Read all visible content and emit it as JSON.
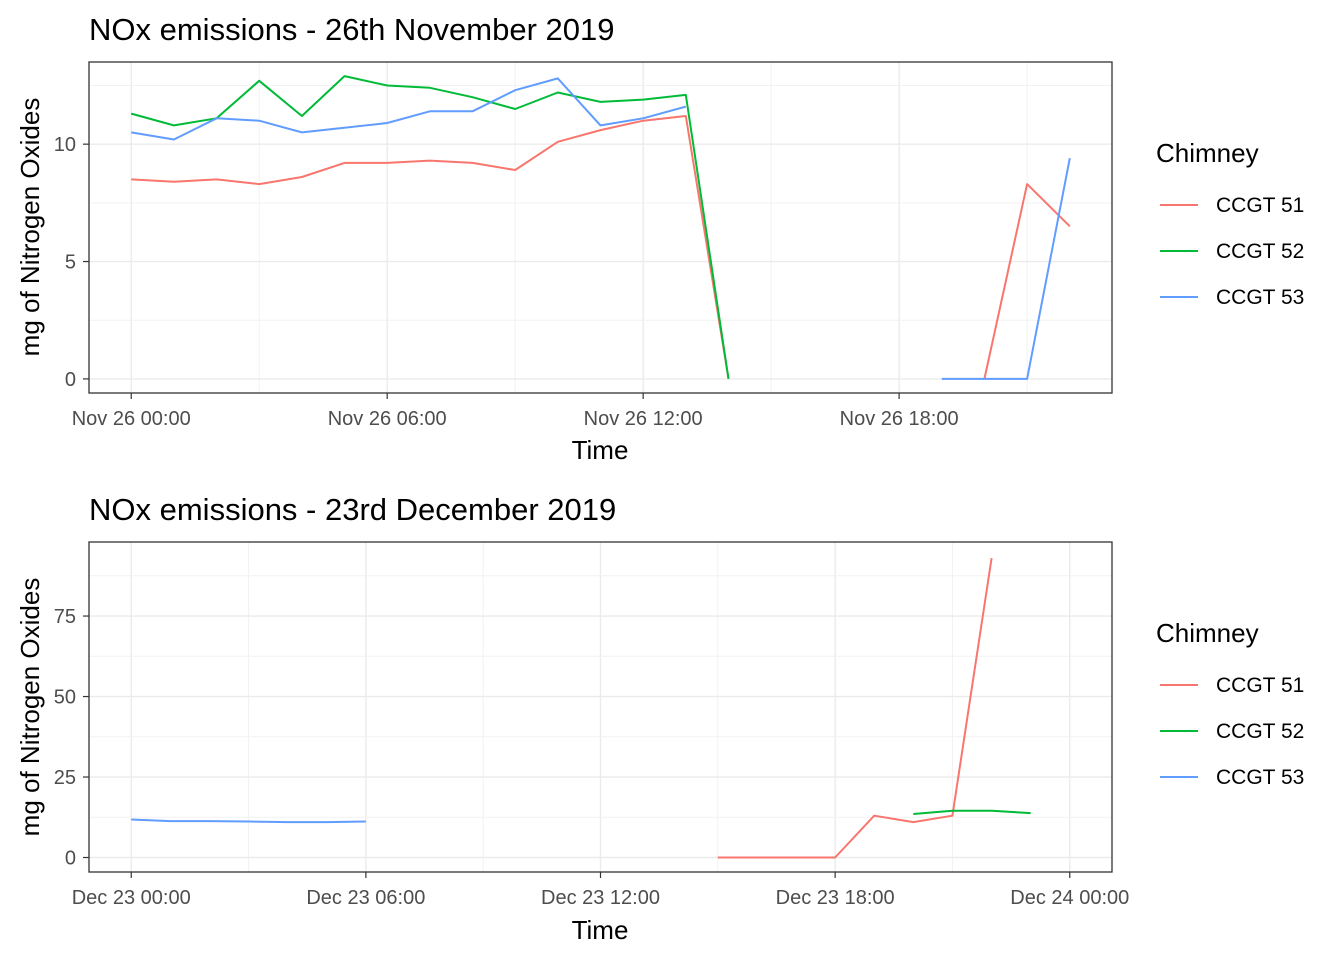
{
  "chart_data": [
    {
      "type": "line",
      "title": "NOx emissions - 26th November 2019",
      "xlabel": "Time",
      "ylabel": "mg of Nitrogen Oxides",
      "xlim": [
        "2019-11-26 00:00",
        "2019-11-26 22:00"
      ],
      "ylim": [
        -0.6,
        13.5
      ],
      "x_ticks": [
        "Nov 26 00:00",
        "Nov 26 06:00",
        "Nov 26 12:00",
        "Nov 26 18:00"
      ],
      "y_ticks": [
        "0",
        "5",
        "10"
      ],
      "grid": true,
      "legend": {
        "title": "Chimney",
        "position": "right"
      },
      "series": [
        {
          "name": "CCGT 51",
          "color": "#F8766D",
          "x": [
            "2019-11-26 00:00",
            "2019-11-26 01:00",
            "2019-11-26 02:00",
            "2019-11-26 03:00",
            "2019-11-26 04:00",
            "2019-11-26 05:00",
            "2019-11-26 06:00",
            "2019-11-26 07:00",
            "2019-11-26 08:00",
            "2019-11-26 09:00",
            "2019-11-26 10:00",
            "2019-11-26 11:00",
            "2019-11-26 12:00",
            "2019-11-26 13:00",
            "2019-11-26 14:00",
            null,
            "2019-11-26 20:00",
            "2019-11-26 21:00",
            "2019-11-26 22:00"
          ],
          "y": [
            8.5,
            8.4,
            8.5,
            8.3,
            8.6,
            9.2,
            9.2,
            9.3,
            9.2,
            8.9,
            10.1,
            10.6,
            11.0,
            11.2,
            0,
            null,
            0,
            8.3,
            6.5
          ]
        },
        {
          "name": "CCGT 52",
          "color": "#00BA38",
          "x": [
            "2019-11-26 00:00",
            "2019-11-26 01:00",
            "2019-11-26 02:00",
            "2019-11-26 03:00",
            "2019-11-26 04:00",
            "2019-11-26 05:00",
            "2019-11-26 06:00",
            "2019-11-26 07:00",
            "2019-11-26 08:00",
            "2019-11-26 09:00",
            "2019-11-26 10:00",
            "2019-11-26 11:00",
            "2019-11-26 12:00",
            "2019-11-26 13:00",
            "2019-11-26 14:00"
          ],
          "y": [
            11.3,
            10.8,
            11.1,
            12.7,
            11.2,
            12.9,
            12.5,
            12.4,
            12.0,
            11.5,
            12.2,
            11.8,
            11.9,
            12.1,
            0
          ]
        },
        {
          "name": "CCGT 53",
          "color": "#619CFF",
          "x": [
            "2019-11-26 00:00",
            "2019-11-26 01:00",
            "2019-11-26 02:00",
            "2019-11-26 03:00",
            "2019-11-26 04:00",
            "2019-11-26 05:00",
            "2019-11-26 06:00",
            "2019-11-26 07:00",
            "2019-11-26 08:00",
            "2019-11-26 09:00",
            "2019-11-26 10:00",
            "2019-11-26 11:00",
            "2019-11-26 12:00",
            "2019-11-26 13:00",
            null,
            "2019-11-26 19:00",
            "2019-11-26 20:00",
            "2019-11-26 21:00",
            "2019-11-26 22:00"
          ],
          "y": [
            10.5,
            10.2,
            11.1,
            11.0,
            10.5,
            10.7,
            10.9,
            11.4,
            11.4,
            12.3,
            12.8,
            10.8,
            11.1,
            11.6,
            null,
            0,
            0,
            0,
            9.4
          ]
        }
      ]
    },
    {
      "type": "line",
      "title": "NOx emissions - 23rd December 2019",
      "xlabel": "Time",
      "ylabel": "mg of Nitrogen Oxides",
      "xlim": [
        "2019-12-23 00:00",
        "2019-12-24 00:00"
      ],
      "ylim": [
        -4.5,
        98
      ],
      "x_ticks": [
        "Dec 23 00:00",
        "Dec 23 06:00",
        "Dec 23 12:00",
        "Dec 23 18:00",
        "Dec 24 00:00"
      ],
      "y_ticks": [
        "0",
        "25",
        "50",
        "75"
      ],
      "grid": true,
      "legend": {
        "title": "Chimney",
        "position": "right"
      },
      "series": [
        {
          "name": "CCGT 51",
          "color": "#F8766D",
          "x": [
            "2019-12-23 15:00",
            "2019-12-23 16:00",
            "2019-12-23 17:00",
            "2019-12-23 18:00",
            "2019-12-23 19:00",
            "2019-12-23 20:00",
            "2019-12-23 21:00",
            "2019-12-23 22:00"
          ],
          "y": [
            0,
            0,
            0,
            0,
            13,
            11,
            13,
            93
          ]
        },
        {
          "name": "CCGT 52",
          "color": "#00BA38",
          "x": [
            "2019-12-23 20:00",
            "2019-12-23 21:00",
            "2019-12-23 22:00",
            "2019-12-23 23:00"
          ],
          "y": [
            13.5,
            14.5,
            14.5,
            13.8
          ]
        },
        {
          "name": "CCGT 53",
          "color": "#619CFF",
          "x": [
            "2019-12-23 00:00",
            "2019-12-23 01:00",
            "2019-12-23 02:00",
            "2019-12-23 03:00",
            "2019-12-23 04:00",
            "2019-12-23 05:00",
            "2019-12-23 06:00"
          ],
          "y": [
            11.8,
            11.3,
            11.3,
            11.2,
            11.0,
            11.0,
            11.2
          ]
        }
      ]
    }
  ]
}
